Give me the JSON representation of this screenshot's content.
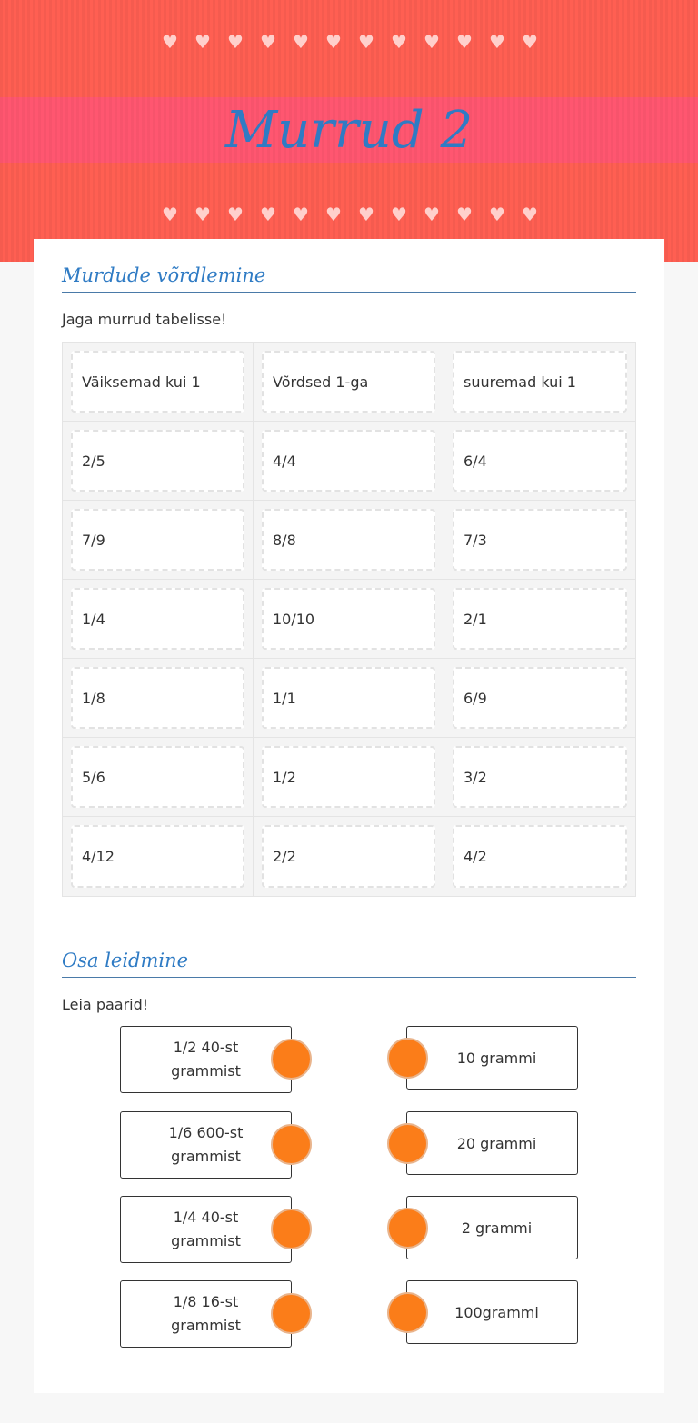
{
  "header": {
    "title": "Murrud 2",
    "heart_count": 12
  },
  "section1": {
    "title": "Murdude võrdlemine",
    "instruction": "Jaga murrud tabelisse!",
    "rows": [
      [
        "Väiksemad kui 1",
        "Võrdsed 1-ga",
        "suuremad kui 1"
      ],
      [
        "2/5",
        "4/4",
        "6/4"
      ],
      [
        "7/9",
        "8/8",
        "7/3"
      ],
      [
        "1/4",
        "10/10",
        "2/1"
      ],
      [
        "1/8",
        "1/1",
        "6/9"
      ],
      [
        "5/6",
        "1/2",
        "3/2"
      ],
      [
        "4/12",
        "2/2",
        "4/2"
      ]
    ]
  },
  "section2": {
    "title": "Osa leidmine",
    "instruction": "Leia paarid!",
    "left": [
      "1/2 40-st grammist",
      "1/6 600-st grammist",
      "1/4 40-st grammist",
      "1/8 16-st grammist"
    ],
    "right": [
      "10 grammi",
      "20 grammi",
      "2 grammi",
      "100grammi"
    ],
    "connector_color": "#fb7d19"
  }
}
